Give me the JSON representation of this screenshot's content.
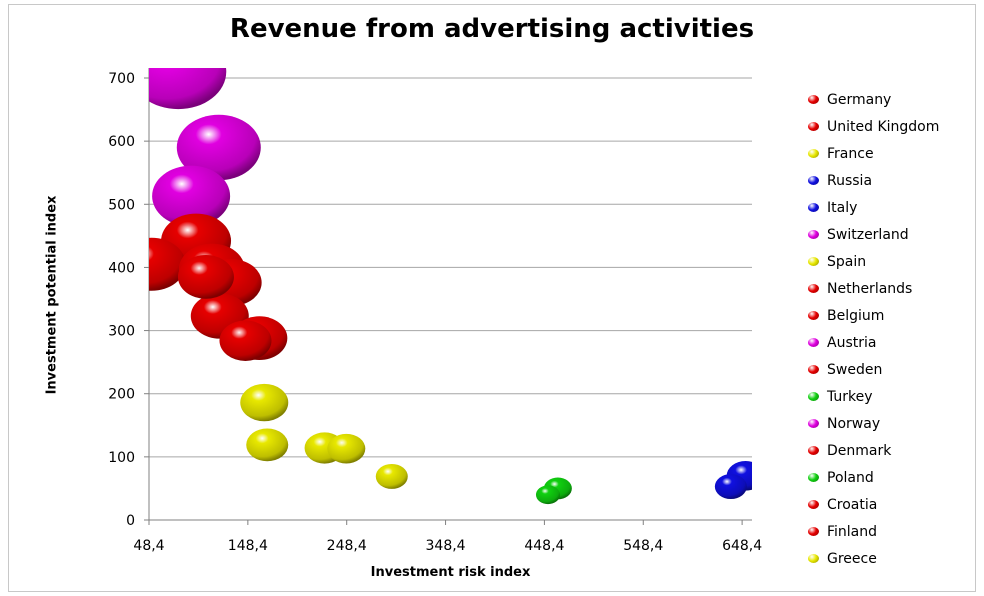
{
  "chart_data": {
    "type": "bubble",
    "title": "Revenue from advertising activities",
    "xlabel": "Investment risk index",
    "ylabel": "Investment potential index",
    "xlim": [
      48.4,
      658.4
    ],
    "ylim": [
      0,
      700
    ],
    "x_ticks": [
      "48,4",
      "148,4",
      "248,4",
      "348,4",
      "448,4",
      "548,4",
      "648,4"
    ],
    "y_ticks": [
      "0",
      "100",
      "200",
      "300",
      "400",
      "500",
      "600",
      "700"
    ],
    "grid": "horizontal",
    "legend_position": "right",
    "series": [
      {
        "name": "Germany",
        "color": "#e60000",
        "x": 96,
        "y": 442,
        "size": 70
      },
      {
        "name": "United Kingdom",
        "color": "#e60000",
        "x": 51,
        "y": 405,
        "size": 68
      },
      {
        "name": "France",
        "color": "#e8e800",
        "x": 165,
        "y": 186,
        "size": 48
      },
      {
        "name": "Russia",
        "color": "#1010e0",
        "x": 652,
        "y": 70,
        "size": 38
      },
      {
        "name": "Italy",
        "color": "#1010e0",
        "x": 637,
        "y": 53,
        "size": 32
      },
      {
        "name": "Switzerland",
        "color": "#e000e0",
        "x": 119,
        "y": 590,
        "size": 84
      },
      {
        "name": "Spain",
        "color": "#e8e800",
        "x": 168,
        "y": 119,
        "size": 42
      },
      {
        "name": "Netherlands",
        "color": "#e60000",
        "x": 112,
        "y": 397,
        "size": 66
      },
      {
        "name": "Belgium",
        "color": "#e60000",
        "x": 132,
        "y": 376,
        "size": 60
      },
      {
        "name": "Austria",
        "color": "#e000e0",
        "x": 91,
        "y": 513,
        "size": 78
      },
      {
        "name": "Sweden",
        "color": "#e60000",
        "x": 120,
        "y": 323,
        "size": 58
      },
      {
        "name": "Turkey",
        "color": "#10d010",
        "x": 462,
        "y": 50,
        "size": 28
      },
      {
        "name": "Norway",
        "color": "#e000e0",
        "x": 78,
        "y": 710,
        "size": 96
      },
      {
        "name": "Denmark",
        "color": "#e60000",
        "x": 160,
        "y": 288,
        "size": 56
      },
      {
        "name": "Poland",
        "color": "#10d010",
        "x": 452,
        "y": 40,
        "size": 24
      },
      {
        "name": "Croatia",
        "color": "#e60000",
        "x": 146,
        "y": 284,
        "size": 52
      },
      {
        "name": "Finland",
        "color": "#e60000",
        "x": 106,
        "y": 385,
        "size": 56
      },
      {
        "name": "Greece",
        "color": "#e8e800",
        "x": 226,
        "y": 114,
        "size": 40
      },
      {
        "name": "Greece",
        "color": "#e8e800",
        "x": 248,
        "y": 113,
        "size": 38
      },
      {
        "name": "Greece",
        "color": "#e8e800",
        "x": 294,
        "y": 69,
        "size": 32
      }
    ],
    "legend": [
      {
        "name": "Germany",
        "color": "#e60000"
      },
      {
        "name": "United Kingdom",
        "color": "#e60000"
      },
      {
        "name": "France",
        "color": "#e8e800"
      },
      {
        "name": "Russia",
        "color": "#1010e0"
      },
      {
        "name": "Italy",
        "color": "#1010e0"
      },
      {
        "name": "Switzerland",
        "color": "#e000e0"
      },
      {
        "name": "Spain",
        "color": "#e8e800"
      },
      {
        "name": "Netherlands",
        "color": "#e60000"
      },
      {
        "name": "Belgium",
        "color": "#e60000"
      },
      {
        "name": "Austria",
        "color": "#e000e0"
      },
      {
        "name": "Sweden",
        "color": "#e60000"
      },
      {
        "name": "Turkey",
        "color": "#10d010"
      },
      {
        "name": "Norway",
        "color": "#e000e0"
      },
      {
        "name": "Denmark",
        "color": "#e60000"
      },
      {
        "name": "Poland",
        "color": "#10d010"
      },
      {
        "name": "Croatia",
        "color": "#e60000"
      },
      {
        "name": "Finland",
        "color": "#e60000"
      },
      {
        "name": "Greece",
        "color": "#e8e800"
      }
    ]
  }
}
